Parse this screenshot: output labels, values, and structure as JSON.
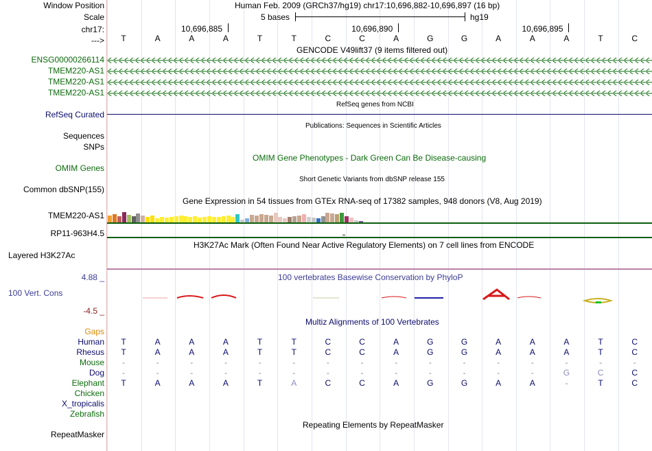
{
  "header": {
    "window_position_label": "Window Position",
    "scale_label": "Scale",
    "chrom_label": "chr17:",
    "strand_label": "--->",
    "assembly_position": "Human Feb. 2009 (GRCh37/hg19)   chr17:10,696,882-10,696,897 (16 bp)",
    "scale_text": "5 bases",
    "scale_db": "hg19",
    "coord_ticks": [
      "10,696,885",
      "10,696,890",
      "10,696,895"
    ]
  },
  "sequence": [
    "T",
    "A",
    "A",
    "A",
    "T",
    "T",
    "C",
    "C",
    "A",
    "G",
    "G",
    "A",
    "A",
    "A",
    "T",
    "C"
  ],
  "tracks": {
    "gencode": {
      "title": "GENCODE V49lift37 (9 items filtered out)",
      "items": [
        "ENSG00000266114",
        "TMEM220-AS1",
        "TMEM220-AS1",
        "TMEM220-AS1"
      ]
    },
    "refseq": {
      "label": "RefSeq Curated",
      "title": "RefSeq genes from NCBI"
    },
    "publications": {
      "labels": [
        "Sequences",
        "SNPs"
      ],
      "title": "Publications: Sequences in Scientific Articles"
    },
    "omim": {
      "label": "OMIM Genes",
      "title": "OMIM Gene Phenotypes - Dark Green Can Be Disease-causing"
    },
    "dbsnp": {
      "label": "Common dbSNP(155)",
      "title": "Short Genetic Variants from dbSNP release 155"
    },
    "gtex": {
      "title": "Gene Expression in 54 tissues from GTEx RNA-seq of 17382 samples, 948 donors (V8, Aug 2019)",
      "genes": [
        "TMEM220-AS1",
        "RP11-963H4.5"
      ]
    },
    "h3k27ac": {
      "label": "Layered H3K27Ac",
      "title": "H3K27Ac Mark (Often Found Near Active Regulatory Elements) on 7 cell lines from ENCODE"
    },
    "cons": {
      "label": "100 Vert. Cons",
      "max": "4.88 _",
      "min": "-4.5 _",
      "title": "100 vertebrates Basewise Conservation by PhyloP"
    },
    "multiz": {
      "title": "Multiz Alignments of 100 Vertebrates",
      "gaps_label": "Gaps",
      "species": [
        {
          "name": "Human",
          "bases": [
            "T",
            "A",
            "A",
            "A",
            "T",
            "T",
            "C",
            "C",
            "A",
            "G",
            "G",
            "A",
            "A",
            "A",
            "T",
            "C"
          ]
        },
        {
          "name": "Rhesus",
          "bases": [
            "T",
            "A",
            "A",
            "A",
            "T",
            "T",
            "C",
            "C",
            "A",
            "G",
            "G",
            "A",
            "A",
            "A",
            "T",
            "C"
          ]
        },
        {
          "name": "Mouse",
          "bases": [
            "-",
            "-",
            "-",
            "-",
            "-",
            "-",
            "-",
            "-",
            "-",
            "-",
            "-",
            "-",
            "-",
            "-",
            "-",
            "-"
          ]
        },
        {
          "name": "Dog",
          "bases": [
            "-",
            "-",
            "-",
            "-",
            "-",
            "-",
            "-",
            "-",
            "-",
            "-",
            "-",
            "-",
            "-",
            "G",
            "C",
            "C"
          ]
        },
        {
          "name": "Elephant",
          "bases": [
            "T",
            "A",
            "A",
            "A",
            "T",
            "A",
            "C",
            "C",
            "A",
            "G",
            "G",
            "A",
            "A",
            "-",
            "T",
            "C"
          ]
        },
        {
          "name": "Chicken",
          "bases": []
        },
        {
          "name": "X_tropicalis",
          "bases": []
        },
        {
          "name": "Zebrafish",
          "bases": []
        }
      ]
    },
    "repeatmasker": {
      "label": "RepeatMasker",
      "title": "Repeating Elements by RepeatMasker"
    }
  },
  "colors": {
    "green_label": "#0b6b0b",
    "navy_label": "#0a0a6e",
    "gaps_label": "#d88a00",
    "gtex_baseline": "#0b5e0b",
    "refseq_line": "#0a0a6e",
    "cons_up": "#d81818",
    "cons_down": "#2020a8"
  }
}
